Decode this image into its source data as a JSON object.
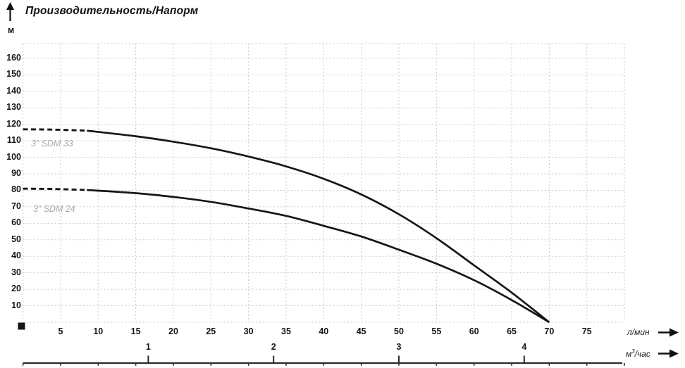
{
  "header": {
    "title": "Производительность/Напорм",
    "y_axis_unit": "м"
  },
  "axes": {
    "primary_x_unit": "л/мин",
    "secondary_x_unit_prefix": "м",
    "secondary_x_unit_sup": "3",
    "secondary_x_unit_suffix": "/час"
  },
  "chart_data": {
    "type": "line",
    "title": "Производительность/Напорм",
    "ylabel": "м",
    "xlabel_primary": "л/мин",
    "xlabel_secondary": "м3/час",
    "xlim_lmin": [
      0,
      80
    ],
    "ylim_m": [
      0,
      169
    ],
    "grid": true,
    "y_ticks": [
      160,
      150,
      140,
      130,
      120,
      110,
      100,
      90,
      80,
      70,
      60,
      50,
      40,
      30,
      20,
      10
    ],
    "x_ticks_lmin": [
      5,
      10,
      15,
      20,
      25,
      30,
      35,
      40,
      45,
      50,
      55,
      60,
      65,
      70,
      75
    ],
    "x_ticks_m3h": [
      1,
      2,
      3,
      4
    ],
    "lmin_per_m3h": 16.6667,
    "series": [
      {
        "name": "3” SDM 33",
        "dashed_until_x": 8.5,
        "points": [
          [
            0,
            117
          ],
          [
            4,
            116.8
          ],
          [
            8.5,
            116.2
          ],
          [
            15,
            112.8
          ],
          [
            20,
            109.5
          ],
          [
            25,
            105.5
          ],
          [
            30,
            100.5
          ],
          [
            35,
            94.5
          ],
          [
            40,
            87
          ],
          [
            45,
            77.5
          ],
          [
            50,
            65.5
          ],
          [
            55,
            51
          ],
          [
            60,
            34.5
          ],
          [
            65,
            18
          ],
          [
            70,
            0
          ]
        ]
      },
      {
        "name": "3” SDM 24",
        "dashed_until_x": 8.5,
        "points": [
          [
            0,
            81
          ],
          [
            4,
            80.8
          ],
          [
            8.5,
            80.2
          ],
          [
            15,
            78.3
          ],
          [
            20,
            76
          ],
          [
            25,
            73
          ],
          [
            30,
            69
          ],
          [
            35,
            64.5
          ],
          [
            40,
            58.5
          ],
          [
            45,
            52
          ],
          [
            50,
            44
          ],
          [
            55,
            35.5
          ],
          [
            60,
            25.5
          ],
          [
            65,
            13.5
          ],
          [
            70,
            0
          ]
        ]
      }
    ],
    "legend_position": "on-curve-left",
    "colors": {
      "curve": "#161616",
      "grid": "#c9c9c9",
      "axis": "#2b2b2b",
      "series_label": "#a9a9a9",
      "text": "#111111"
    }
  }
}
